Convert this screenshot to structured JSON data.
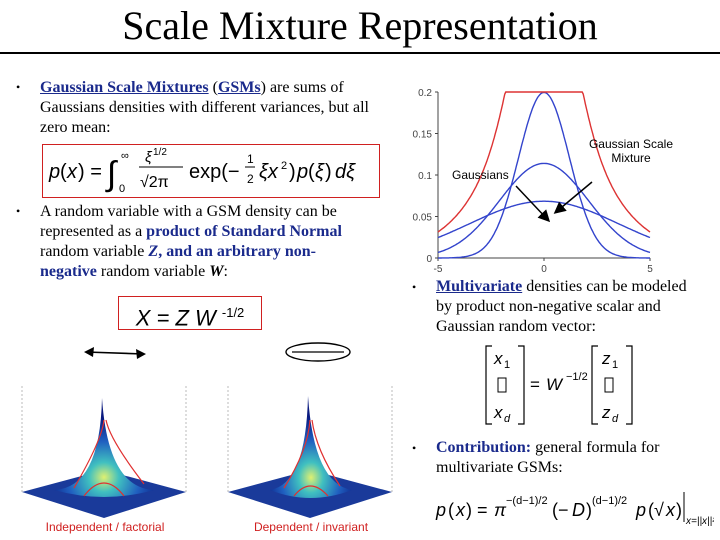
{
  "title": "Scale Mixture Representation",
  "bullet_char": "•",
  "bullet1": {
    "part1": "Gaussian Scale Mixtures",
    "part2": " (",
    "part3": "GSMs",
    "part4": ") are sums of Gaussians densities with different variances, but all zero mean:"
  },
  "bullet2": {
    "t1": "A random variable with a GSM density can be represented as a ",
    "t2": "product of Standard Normal",
    "t3": " random variable ",
    "t4": "Z",
    "t5": ", and an arbitrary non-negative",
    "t6": " random variable ",
    "t7": "W",
    "t8": ":"
  },
  "formula2": {
    "lhs": "X = Z W",
    "exp": "-1/2"
  },
  "bullet3": {
    "t1": "Multivariate",
    "t2": " densities can be modeled by product non-negative scalar and Gaussian random vector:"
  },
  "bullet4": {
    "t1": "Contribution:",
    "t2": " general formula for multivariate GSMs:"
  },
  "chart_labels": {
    "gaussians": "Gaussians",
    "gsm_line1": "Gaussian Scale",
    "gsm_line2": "Mixture"
  },
  "chart_data": {
    "type": "line",
    "title": "",
    "xlabel": "",
    "ylabel": "",
    "xlim": [
      -5,
      5
    ],
    "ylim": [
      0,
      0.2
    ],
    "xticks": [
      "-5",
      "0",
      "5"
    ],
    "yticks": [
      "0",
      "0.05",
      "0.1",
      "0.15",
      "0.2"
    ],
    "series": [
      {
        "kind": "gaussian",
        "sigma": 1.2,
        "weight": 0.6,
        "color": "#3344cc"
      },
      {
        "kind": "gaussian",
        "sigma": 2.1,
        "weight": 0.6,
        "color": "#3344cc"
      },
      {
        "kind": "gaussian",
        "sigma": 3.5,
        "weight": 0.6,
        "color": "#3344cc"
      },
      {
        "kind": "mixture",
        "color": "#dd3333"
      }
    ]
  },
  "plots": {
    "left_label": "Independent / factorial",
    "right_label": "Dependent / invariant"
  },
  "colors": {
    "accent_blue": "#1a2a8c",
    "accent_red": "#d02020"
  }
}
